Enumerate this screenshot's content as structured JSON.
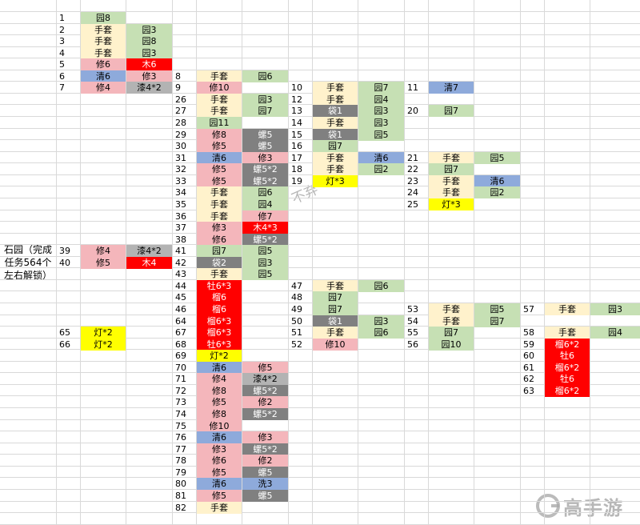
{
  "side_label": "石园（完成任务564个左右解锁）",
  "watermark": "B站：不弃丶吶弃",
  "logo": "高手游",
  "columns": [
    {
      "rows": [
        [
          "1",
          "园8",
          "",
          "green",
          ""
        ],
        [
          "2",
          "手套",
          "园3",
          "cream",
          "green"
        ],
        [
          "3",
          "手套",
          "园8",
          "cream",
          "green"
        ],
        [
          "4",
          "手套",
          "园3",
          "cream",
          "green"
        ],
        [
          "5",
          "修6",
          "木6",
          "pink",
          "red"
        ],
        [
          "6",
          "清6",
          "修3",
          "blue",
          "pink"
        ],
        [
          "7",
          "修4",
          "漆4*2",
          "pink",
          "lgray"
        ]
      ],
      "start": 0
    },
    {
      "rows": [
        [
          "39",
          "修4",
          "漆4*2",
          "pink",
          "lgray"
        ],
        [
          "40",
          "修5",
          "木4",
          "pink",
          "red"
        ]
      ],
      "start": 20
    },
    {
      "rows": [
        [
          "65",
          "灯*2",
          "",
          "yellow",
          ""
        ],
        [
          "66",
          "灯*2",
          "",
          "yellow",
          ""
        ]
      ],
      "start": 27
    },
    {
      "rows": [
        [
          "8",
          "手套",
          "园6",
          "cream",
          "green"
        ],
        [
          "9",
          "修10",
          "",
          "pink",
          ""
        ],
        [
          "26",
          "手套",
          "园3",
          "cream",
          "green"
        ],
        [
          "27",
          "手套",
          "园7",
          "cream",
          "green"
        ],
        [
          "28",
          "园11",
          "",
          "green",
          ""
        ],
        [
          "29",
          "修8",
          "螺5",
          "pink",
          "dgray"
        ],
        [
          "30",
          "修5",
          "螺5",
          "pink",
          "dgray"
        ],
        [
          "31",
          "清6",
          "修3",
          "blue",
          "pink"
        ],
        [
          "32",
          "修5",
          "螺5*2",
          "pink",
          "dgray"
        ],
        [
          "33",
          "修5",
          "螺5*2",
          "pink",
          "dgray"
        ],
        [
          "34",
          "手套",
          "园6",
          "cream",
          "green"
        ],
        [
          "35",
          "手套",
          "园4",
          "cream",
          "green"
        ],
        [
          "36",
          "手套",
          "修7",
          "cream",
          "pink"
        ],
        [
          "37",
          "修3",
          "木4*3",
          "pink",
          "red"
        ],
        [
          "38",
          "修6",
          "螺5*2",
          "pink",
          "dgray"
        ],
        [
          "41",
          "园7",
          "园5",
          "green",
          "green"
        ],
        [
          "42",
          "袋2",
          "园3",
          "dgray",
          "green"
        ],
        [
          "43",
          "手套",
          "园5",
          "cream",
          "green"
        ],
        [
          "44",
          "牡6*3",
          "",
          "red",
          ""
        ],
        [
          "45",
          "榴6",
          "",
          "red",
          ""
        ],
        [
          "46",
          "榴6",
          "",
          "red",
          ""
        ],
        [
          "64",
          "榴6*3",
          "",
          "red",
          ""
        ],
        [
          "67",
          "榴6*3",
          "",
          "red",
          ""
        ],
        [
          "68",
          "牡6*3",
          "",
          "red",
          ""
        ],
        [
          "69",
          "灯*2",
          "",
          "yellow",
          ""
        ],
        [
          "70",
          "清6",
          "修5",
          "blue",
          "pink"
        ],
        [
          "71",
          "修4",
          "漆4*2",
          "pink",
          "lgray"
        ],
        [
          "72",
          "修8",
          "螺5*2",
          "pink",
          "dgray"
        ],
        [
          "73",
          "修5",
          "修2",
          "pink",
          "pink"
        ],
        [
          "74",
          "修8",
          "螺5*2",
          "pink",
          "dgray"
        ],
        [
          "75",
          "修10",
          "",
          "pink",
          ""
        ],
        [
          "76",
          "清6",
          "修3",
          "blue",
          "pink"
        ],
        [
          "77",
          "修3",
          "螺5*2",
          "pink",
          "dgray"
        ],
        [
          "78",
          "修6",
          "修2",
          "pink",
          "pink"
        ],
        [
          "79",
          "修5",
          "螺5",
          "pink",
          "dgray"
        ],
        [
          "80",
          "清6",
          "洗3",
          "blue",
          "blue"
        ],
        [
          "81",
          "修5",
          "螺5",
          "pink",
          "dgray"
        ],
        [
          "82",
          "手套",
          "",
          "cream",
          ""
        ]
      ],
      "start": 5
    },
    {
      "rows": [
        [
          "10",
          "手套",
          "园7",
          "cream",
          "green"
        ],
        [
          "12",
          "手套",
          "园4",
          "cream",
          "green"
        ],
        [
          "13",
          "袋1",
          "园3",
          "dgray",
          "green"
        ],
        [
          "14",
          "手套",
          "园3",
          "cream",
          "green"
        ],
        [
          "15",
          "袋1",
          "园5",
          "dgray",
          "green"
        ],
        [
          "16",
          "园7",
          "",
          "green",
          ""
        ],
        [
          "17",
          "手套",
          "清6",
          "cream",
          "blue"
        ],
        [
          "18",
          "手套",
          "园2",
          "cream",
          "green"
        ],
        [
          "19",
          "灯*3",
          "",
          "yellow",
          ""
        ]
      ],
      "start": 6
    },
    {
      "rows": [
        [
          "47",
          "手套",
          "园6",
          "cream",
          "green"
        ],
        [
          "48",
          "园7",
          "",
          "green",
          ""
        ],
        [
          "49",
          "园7",
          "",
          "green",
          ""
        ],
        [
          "50",
          "袋1",
          "园3",
          "dgray",
          "green"
        ],
        [
          "51",
          "手套",
          "园6",
          "cream",
          "green"
        ],
        [
          "52",
          "修10",
          "",
          "pink",
          ""
        ]
      ],
      "start": 23
    },
    {
      "rows": [
        [
          "11",
          "清7",
          "",
          "blue",
          ""
        ]
      ],
      "start": 6
    },
    {
      "rows": [
        [
          "20",
          "园7",
          "",
          "green",
          ""
        ]
      ],
      "start": 8
    },
    {
      "rows": [
        [
          "21",
          "手套",
          "园5",
          "cream",
          "green"
        ],
        [
          "22",
          "园7",
          "",
          "green",
          ""
        ],
        [
          "23",
          "手套",
          "清6",
          "cream",
          "blue"
        ],
        [
          "24",
          "手套",
          "园2",
          "cream",
          "green"
        ],
        [
          "25",
          "灯*3",
          "",
          "yellow",
          ""
        ]
      ],
      "start": 12
    },
    {
      "rows": [
        [
          "53",
          "手套",
          "园5",
          "cream",
          "green"
        ],
        [
          "54",
          "手套",
          "园7",
          "cream",
          "green"
        ],
        [
          "55",
          "园7",
          "",
          "green",
          ""
        ],
        [
          "56",
          "园10",
          "",
          "green",
          ""
        ]
      ],
      "start": 25
    },
    {
      "rows": [
        [
          "57",
          "手套",
          "园3",
          "cream",
          "green"
        ]
      ],
      "start": 25
    },
    {
      "rows": [
        [
          "58",
          "手套",
          "园4",
          "cream",
          "green"
        ],
        [
          "59",
          "榴6*2",
          "",
          "red",
          ""
        ],
        [
          "60",
          "牡6",
          "",
          "red",
          ""
        ],
        [
          "61",
          "榴6*2",
          "",
          "red",
          ""
        ],
        [
          "62",
          "牡6",
          "",
          "red",
          ""
        ],
        [
          "63",
          "榴6*2",
          "",
          "red",
          ""
        ]
      ],
      "start": 27
    }
  ]
}
